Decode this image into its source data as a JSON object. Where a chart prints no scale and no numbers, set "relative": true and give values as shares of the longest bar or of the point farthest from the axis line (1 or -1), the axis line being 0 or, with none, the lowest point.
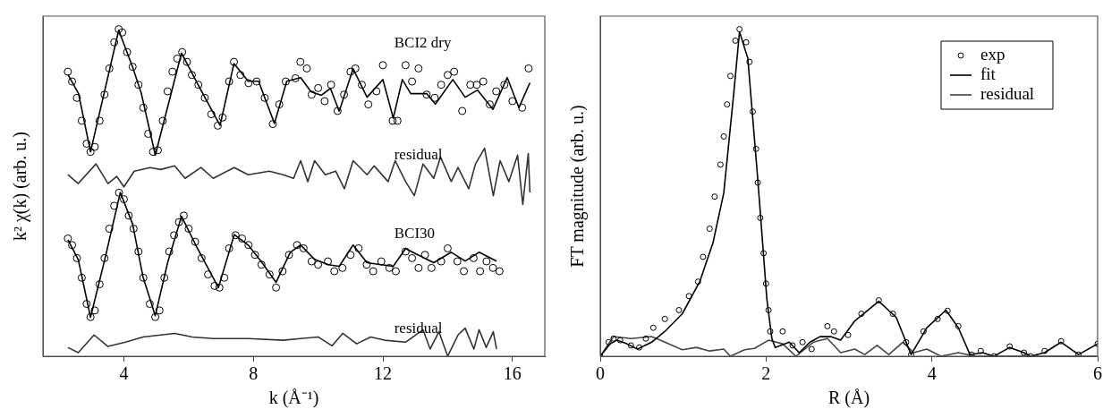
{
  "chart_data": [
    {
      "type": "line",
      "xlabel": "k (Å⁻¹)",
      "ylabel": "k² χ(k) (arb. u.)",
      "relative": true,
      "legend": false,
      "grid": false,
      "xlim": [
        1.5,
        17
      ],
      "xticks": [
        4,
        8,
        12,
        16
      ],
      "annotations": [
        "BCI2 dry",
        "residual",
        "BCI30",
        "residual"
      ],
      "series": [
        {
          "type": "scatter",
          "marker": "circle",
          "color": "#000000",
          "x": [
            2.27,
            2.4,
            2.55,
            2.7,
            2.85,
            2.97,
            3.1,
            3.25,
            3.4,
            3.55,
            3.7,
            3.84,
            3.95,
            4.1,
            4.27,
            4.45,
            4.6,
            4.75,
            4.9,
            5.05,
            5.2,
            5.35,
            5.5,
            5.65,
            5.8,
            5.95,
            6.1,
            6.3,
            6.5,
            6.7,
            6.9,
            7.05,
            7.25,
            7.4,
            7.6,
            7.85,
            8.1,
            8.35,
            8.6,
            8.8,
            9.0,
            9.3,
            9.45,
            9.65,
            9.8,
            10.0,
            10.2,
            10.4,
            10.6,
            10.8,
            11.0,
            11.15,
            11.35,
            11.55,
            11.8,
            12.0,
            12.3,
            12.45,
            12.7,
            12.9,
            13.1,
            13.35,
            13.6,
            13.8,
            14.0,
            14.2,
            14.45,
            14.7,
            14.9,
            15.1,
            15.3,
            15.5,
            15.75,
            16.0,
            16.3,
            16.5
          ],
          "values": [
            0.87,
            0.84,
            0.79,
            0.72,
            0.65,
            0.625,
            0.64,
            0.72,
            0.8,
            0.88,
            0.96,
            1.0,
            0.99,
            0.93,
            0.885,
            0.83,
            0.76,
            0.68,
            0.625,
            0.63,
            0.72,
            0.81,
            0.87,
            0.91,
            0.93,
            0.9,
            0.86,
            0.83,
            0.79,
            0.74,
            0.705,
            0.73,
            0.84,
            0.9,
            0.86,
            0.835,
            0.84,
            0.79,
            0.71,
            0.77,
            0.84,
            0.85,
            0.9,
            0.88,
            0.8,
            0.82,
            0.78,
            0.83,
            0.75,
            0.8,
            0.87,
            0.88,
            0.83,
            0.77,
            0.81,
            0.89,
            0.72,
            0.72,
            0.89,
            0.84,
            0.88,
            0.8,
            0.79,
            0.83,
            0.86,
            0.87,
            0.75,
            0.83,
            0.83,
            0.84,
            0.77,
            0.81,
            0.83,
            0.78,
            0.76,
            0.88
          ]
        },
        {
          "type": "line",
          "line_style": "solid",
          "color": "#000000",
          "x": [
            2.27,
            2.6,
            2.97,
            3.84,
            4.27,
            4.54,
            4.97,
            5.78,
            6.32,
            6.97,
            7.4,
            7.84,
            8.16,
            8.65,
            9.03,
            9.46,
            9.78,
            10.1,
            10.38,
            10.65,
            11.08,
            11.51,
            12.0,
            12.32,
            12.6,
            12.86,
            13.35,
            13.62,
            14.16,
            14.54,
            14.92,
            15.4,
            15.84,
            16.2,
            16.54
          ],
          "values": [
            0.862,
            0.803,
            0.625,
            0.997,
            0.884,
            0.803,
            0.615,
            0.927,
            0.825,
            0.706,
            0.895,
            0.841,
            0.841,
            0.712,
            0.841,
            0.852,
            0.809,
            0.798,
            0.819,
            0.749,
            0.879,
            0.792,
            0.846,
            0.728,
            0.846,
            0.803,
            0.803,
            0.771,
            0.846,
            0.792,
            0.814,
            0.755,
            0.852,
            0.76,
            0.836
          ]
        },
        {
          "type": "line",
          "line_style": "solid",
          "color": "#333333",
          "x": [
            2.27,
            2.59,
            3.14,
            3.51,
            3.78,
            4.0,
            4.32,
            4.81,
            5.14,
            5.57,
            5.89,
            6.38,
            6.76,
            7.41,
            7.84,
            8.49,
            8.92,
            9.24,
            9.46,
            9.68,
            9.89,
            10.22,
            10.54,
            10.81,
            11.08,
            11.51,
            11.73,
            12.16,
            12.38,
            12.7,
            12.97,
            13.24,
            13.57,
            13.78,
            14.11,
            14.32,
            14.65,
            14.86,
            15.14,
            15.41,
            15.62,
            15.89,
            16.16,
            16.32,
            16.49,
            16.54
          ],
          "values": [
            0.555,
            0.528,
            0.588,
            0.528,
            0.55,
            0.518,
            0.566,
            0.577,
            0.571,
            0.582,
            0.544,
            0.577,
            0.544,
            0.577,
            0.555,
            0.566,
            0.555,
            0.544,
            0.598,
            0.534,
            0.598,
            0.555,
            0.566,
            0.512,
            0.598,
            0.555,
            0.582,
            0.534,
            0.598,
            0.534,
            0.491,
            0.588,
            0.544,
            0.609,
            0.534,
            0.577,
            0.512,
            0.588,
            0.636,
            0.491,
            0.598,
            0.534,
            0.615,
            0.464,
            0.62,
            0.501
          ]
        },
        {
          "type": "scatter",
          "marker": "circle",
          "color": "#000000",
          "x": [
            2.27,
            2.4,
            2.55,
            2.7,
            2.85,
            2.97,
            3.1,
            3.25,
            3.4,
            3.55,
            3.7,
            3.85,
            4.0,
            4.15,
            4.3,
            4.45,
            4.6,
            4.8,
            4.97,
            5.1,
            5.25,
            5.4,
            5.55,
            5.7,
            5.85,
            6.0,
            6.2,
            6.4,
            6.6,
            6.8,
            6.95,
            7.1,
            7.25,
            7.45,
            7.65,
            7.85,
            8.05,
            8.25,
            8.5,
            8.7,
            8.9,
            9.1,
            9.35,
            9.55,
            9.8,
            10.0,
            10.3,
            10.5,
            10.75,
            11.0,
            11.25,
            11.5,
            11.7,
            11.95,
            12.2,
            12.4,
            12.7,
            12.9,
            13.1,
            13.3,
            13.5,
            13.8,
            14.0,
            14.3,
            14.5,
            14.8,
            15.0,
            15.2,
            15.4,
            15.6
          ],
          "values": [
            0.36,
            0.34,
            0.3,
            0.24,
            0.16,
            0.12,
            0.14,
            0.22,
            0.3,
            0.39,
            0.46,
            0.5,
            0.48,
            0.43,
            0.39,
            0.32,
            0.24,
            0.16,
            0.12,
            0.14,
            0.24,
            0.32,
            0.37,
            0.41,
            0.43,
            0.39,
            0.35,
            0.3,
            0.25,
            0.215,
            0.21,
            0.24,
            0.33,
            0.37,
            0.36,
            0.34,
            0.31,
            0.28,
            0.25,
            0.21,
            0.26,
            0.31,
            0.34,
            0.33,
            0.29,
            0.28,
            0.29,
            0.26,
            0.27,
            0.31,
            0.33,
            0.28,
            0.26,
            0.29,
            0.27,
            0.26,
            0.32,
            0.3,
            0.27,
            0.31,
            0.27,
            0.29,
            0.33,
            0.29,
            0.26,
            0.3,
            0.26,
            0.29,
            0.27,
            0.26
          ]
        },
        {
          "type": "line",
          "line_style": "solid",
          "color": "#000000",
          "x": [
            2.27,
            2.59,
            2.97,
            3.41,
            3.89,
            4.27,
            4.59,
            4.97,
            5.35,
            5.78,
            6.22,
            6.92,
            7.41,
            7.84,
            8.27,
            8.7,
            9.14,
            9.46,
            9.89,
            10.32,
            10.65,
            11.08,
            11.51,
            11.95,
            12.32,
            12.7,
            13.14,
            13.57,
            14.11,
            14.54,
            14.97,
            15.51
          ],
          "values": [
            0.356,
            0.296,
            0.119,
            0.296,
            0.501,
            0.404,
            0.243,
            0.124,
            0.286,
            0.428,
            0.34,
            0.21,
            0.372,
            0.34,
            0.286,
            0.226,
            0.318,
            0.34,
            0.296,
            0.28,
            0.275,
            0.34,
            0.286,
            0.28,
            0.275,
            0.329,
            0.307,
            0.286,
            0.318,
            0.291,
            0.318,
            0.291
          ]
        },
        {
          "type": "line",
          "line_style": "solid",
          "color": "#333333",
          "x": [
            2.27,
            2.59,
            3.08,
            3.51,
            4.05,
            4.59,
            5.14,
            5.57,
            6.11,
            6.76,
            7.84,
            8.92,
            9.46,
            10.0,
            10.43,
            10.76,
            11.19,
            11.62,
            12.05,
            12.7,
            13.24,
            13.46,
            13.73,
            14.0,
            14.32,
            14.54,
            14.81,
            14.97,
            15.19,
            15.41,
            15.51
          ],
          "values": [
            0.027,
            0.011,
            0.065,
            0.03,
            0.043,
            0.059,
            0.065,
            0.07,
            0.059,
            0.054,
            0.054,
            0.049,
            0.054,
            0.059,
            0.032,
            0.07,
            0.038,
            0.059,
            0.049,
            0.043,
            0.081,
            0.022,
            0.075,
            0.0,
            0.065,
            0.086,
            0.022,
            0.081,
            0.027,
            0.075,
            0.022
          ]
        }
      ]
    },
    {
      "type": "line",
      "xlabel": "R (Å)",
      "ylabel": "FT magnitude (arb. u.)",
      "relative": true,
      "legend": "top right",
      "grid": false,
      "xlim": [
        0,
        6
      ],
      "xticks": [
        0,
        2,
        4,
        6
      ],
      "series": [
        {
          "type": "scatter",
          "name": "exp",
          "marker": "circle",
          "color": "#000000",
          "x": [
            0,
            0.1,
            0.16,
            0.24,
            0.37,
            0.47,
            0.55,
            0.64,
            0.78,
            0.95,
            1.07,
            1.18,
            1.24,
            1.32,
            1.38,
            1.45,
            1.49,
            1.53,
            1.57,
            1.63,
            1.68,
            1.76,
            1.8,
            1.84,
            1.88,
            1.9,
            1.93,
            1.97,
            2.0,
            2.03,
            2.05,
            2.2,
            2.32,
            2.44,
            2.55,
            2.74,
            2.82,
            2.99,
            3.15,
            3.36,
            3.53,
            3.69,
            3.75,
            3.9,
            4.07,
            4.19,
            4.32,
            4.48,
            4.59,
            4.75,
            4.94,
            5.11,
            5.19,
            5.36,
            5.56,
            5.77,
            6.0
          ],
          "values": [
            0,
            0.043,
            0.054,
            0.049,
            0.033,
            0.027,
            0.054,
            0.087,
            0.114,
            0.141,
            0.184,
            0.228,
            0.304,
            0.39,
            0.488,
            0.586,
            0.672,
            0.77,
            0.857,
            0.965,
            1,
            0.96,
            0.9,
            0.748,
            0.634,
            0.531,
            0.423,
            0.315,
            0.222,
            0.141,
            0.076,
            0.076,
            0.033,
            0.043,
            0.022,
            0.092,
            0.076,
            0.065,
            0.13,
            0.171,
            0.13,
            0.043,
            0.005,
            0.076,
            0.114,
            0.139,
            0.092,
            0.005,
            0.016,
            0,
            0.03,
            0.011,
            0,
            0.016,
            0.046,
            0.005,
            0.038
          ]
        },
        {
          "type": "line",
          "name": "fit",
          "line_style": "solid",
          "color": "#000000",
          "x": [
            0,
            0.12,
            0.2,
            0.32,
            0.45,
            0.62,
            0.78,
            0.99,
            1.2,
            1.36,
            1.49,
            1.61,
            1.68,
            1.78,
            1.9,
            2.01,
            2.07,
            2.11,
            2.28,
            2.4,
            2.53,
            2.65,
            2.78,
            2.9,
            3.07,
            3.36,
            3.57,
            3.75,
            3.94,
            4.17,
            4.32,
            4.46,
            4.61,
            4.75,
            4.94,
            5.11,
            5.19,
            5.36,
            5.56,
            5.77,
            6.0
          ],
          "values": [
            0,
            0.038,
            0.049,
            0.038,
            0.022,
            0.043,
            0.076,
            0.13,
            0.228,
            0.347,
            0.499,
            0.803,
            0.992,
            0.911,
            0.542,
            0.174,
            0.054,
            0.027,
            0.043,
            0.011,
            0.043,
            0.06,
            0.06,
            0.049,
            0.108,
            0.168,
            0.119,
            0.005,
            0.087,
            0.141,
            0.087,
            0.005,
            0.011,
            0,
            0.027,
            0.011,
            0,
            0.011,
            0.043,
            0.005,
            0.038
          ]
        },
        {
          "type": "line",
          "name": "residual",
          "line_style": "solid",
          "color": "#444444",
          "x": [
            0,
            0.16,
            0.37,
            0.62,
            0.78,
            0.99,
            1.16,
            1.32,
            1.49,
            1.57,
            1.74,
            1.86,
            2.03,
            2.2,
            2.36,
            2.57,
            2.74,
            2.9,
            3.07,
            3.19,
            3.34,
            3.48,
            3.65,
            3.78,
            3.94,
            4.11,
            4.32,
            4.52,
            6.0
          ],
          "values": [
            0,
            0.06,
            0.054,
            0.06,
            0.043,
            0.02,
            0.027,
            0.016,
            0.022,
            0,
            0.02,
            0.024,
            0.049,
            0.038,
            0,
            0.043,
            0.054,
            0.011,
            0.022,
            0.005,
            0.033,
            0.005,
            0.043,
            0.011,
            0.022,
            0,
            0.011,
            0,
            0
          ]
        }
      ]
    }
  ]
}
